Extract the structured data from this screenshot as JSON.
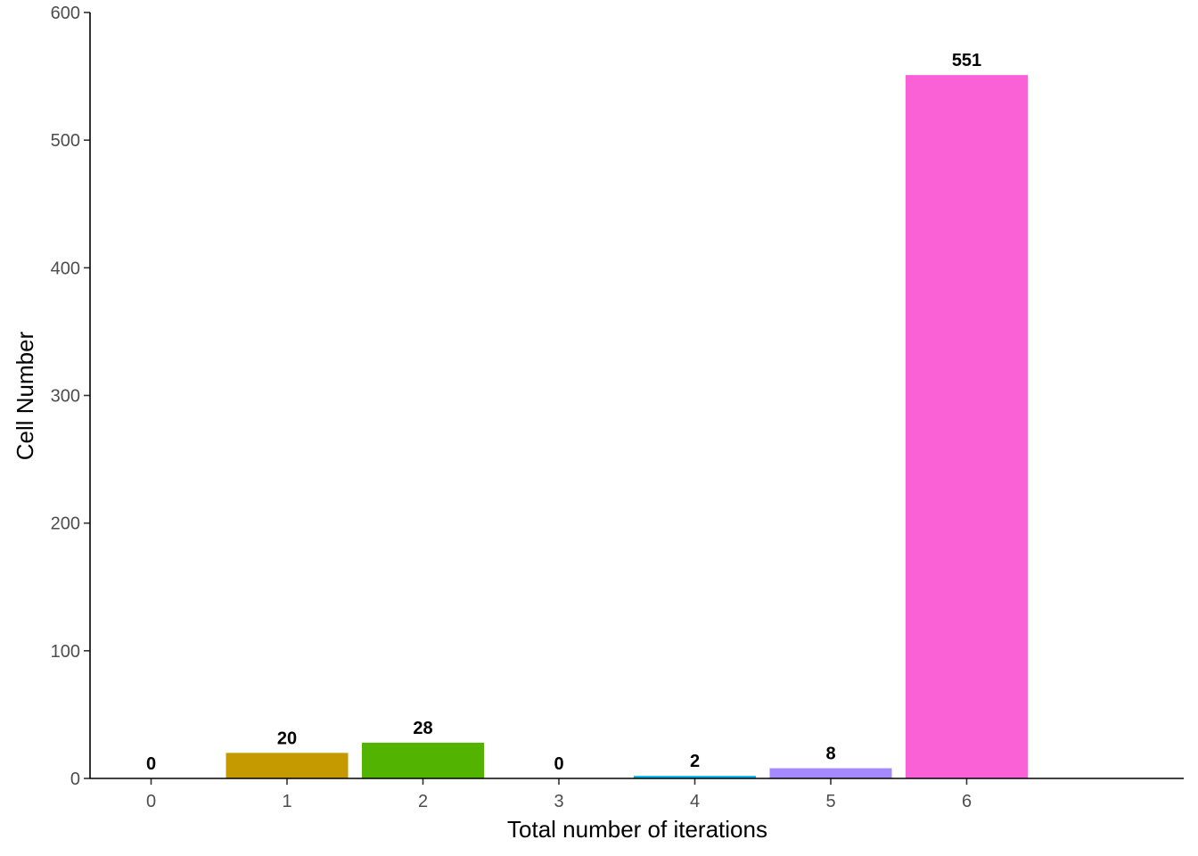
{
  "chart_data": {
    "type": "bar",
    "categories": [
      "0",
      "1",
      "2",
      "3",
      "4",
      "5",
      "6"
    ],
    "values": [
      0,
      20,
      28,
      0,
      2,
      8,
      551
    ],
    "data_labels": [
      "0",
      "20",
      "28",
      "0",
      "2",
      "8",
      "551"
    ],
    "colors": [
      "#F8766D",
      "#C49A00",
      "#53B400",
      "#00C094",
      "#00B6EB",
      "#A58AFF",
      "#FB61D7"
    ],
    "title": "",
    "xlabel": "Total number of iterations",
    "ylabel": "Cell Number",
    "yticks": [
      "0",
      "100",
      "200",
      "300",
      "400",
      "500",
      "600"
    ],
    "ylim": [
      0,
      600
    ],
    "grid": false,
    "legend": "none"
  }
}
